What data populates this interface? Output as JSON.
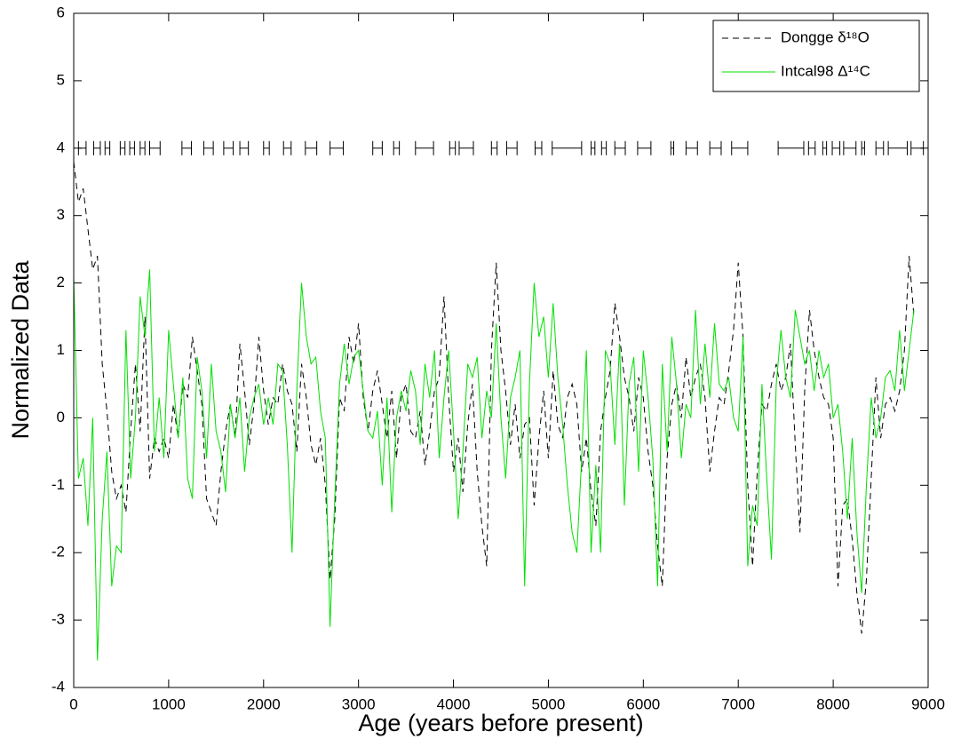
{
  "chart_data": {
    "type": "line",
    "xlabel": "Age (years before present)",
    "ylabel": "Normalized Data",
    "xlim": [
      0,
      9000
    ],
    "xticks": [
      0,
      1000,
      2000,
      3000,
      4000,
      5000,
      6000,
      7000,
      8000,
      9000
    ],
    "ylim": [
      -4,
      6
    ],
    "yticks": [
      -4,
      -3,
      -2,
      -1,
      0,
      1,
      2,
      3,
      4,
      5,
      6
    ],
    "legend": "upper right",
    "x": [
      0,
      50,
      100,
      150,
      200,
      250,
      300,
      350,
      400,
      450,
      500,
      550,
      600,
      650,
      700,
      750,
      800,
      850,
      900,
      950,
      1000,
      1050,
      1100,
      1150,
      1200,
      1250,
      1300,
      1350,
      1400,
      1450,
      1500,
      1550,
      1600,
      1650,
      1700,
      1750,
      1800,
      1850,
      1900,
      1950,
      2000,
      2050,
      2100,
      2150,
      2200,
      2250,
      2300,
      2350,
      2400,
      2450,
      2500,
      2550,
      2600,
      2650,
      2700,
      2750,
      2800,
      2850,
      2900,
      2950,
      3000,
      3050,
      3100,
      3150,
      3200,
      3250,
      3300,
      3350,
      3400,
      3450,
      3500,
      3550,
      3600,
      3650,
      3700,
      3750,
      3800,
      3850,
      3900,
      3950,
      4000,
      4050,
      4100,
      4150,
      4200,
      4250,
      4300,
      4350,
      4400,
      4450,
      4500,
      4550,
      4600,
      4650,
      4700,
      4750,
      4800,
      4850,
      4900,
      4950,
      5000,
      5050,
      5100,
      5150,
      5200,
      5250,
      5300,
      5350,
      5400,
      5450,
      5500,
      5550,
      5600,
      5650,
      5700,
      5750,
      5800,
      5850,
      5900,
      5950,
      6000,
      6050,
      6100,
      6150,
      6200,
      6250,
      6300,
      6350,
      6400,
      6450,
      6500,
      6550,
      6600,
      6650,
      6700,
      6750,
      6800,
      6850,
      6900,
      6950,
      7000,
      7050,
      7100,
      7150,
      7200,
      7250,
      7300,
      7350,
      7400,
      7450,
      7500,
      7550,
      7600,
      7650,
      7700,
      7750,
      7800,
      7850,
      7900,
      7950,
      8000,
      8050,
      8100,
      8150,
      8200,
      8250,
      8300,
      8350,
      8400,
      8450,
      8500,
      8550,
      8600,
      8650,
      8700,
      8750,
      8800,
      8850
    ],
    "series": [
      {
        "name": "Dongge δ¹⁸O",
        "color": "#000000",
        "dash": true,
        "values": [
          3.8,
          3.2,
          3.4,
          2.8,
          2.2,
          2.4,
          0.8,
          0.1,
          -0.8,
          -1.2,
          -1.0,
          -1.4,
          -0.2,
          0.8,
          -0.2,
          1.5,
          -0.9,
          -0.3,
          -0.5,
          -0.3,
          -0.6,
          0.2,
          -0.3,
          0.5,
          0.3,
          1.2,
          0.7,
          0.2,
          -1.2,
          -1.4,
          -1.6,
          -0.8,
          -0.2,
          0.2,
          -0.3,
          1.1,
          0.4,
          -0.4,
          0.2,
          1.2,
          0.4,
          -0.1,
          0.3,
          0.2,
          0.8,
          0.4,
          0.2,
          -0.5,
          0.8,
          0.3,
          -0.4,
          -0.7,
          -0.3,
          -1.0,
          -2.4,
          -1.5,
          0.3,
          0.1,
          1.2,
          0.8,
          1.4,
          0.3,
          -0.2,
          0.4,
          0.7,
          0.2,
          -0.3,
          0.4,
          -0.6,
          0.3,
          0.5,
          -0.2,
          -0.3,
          0.1,
          -0.7,
          -0.2,
          0.4,
          0.6,
          1.8,
          0.3,
          -0.8,
          -0.3,
          -1.1,
          -0.1,
          0.5,
          -0.8,
          -1.6,
          -2.2,
          1.0,
          2.3,
          1.0,
          0.4,
          -0.4,
          0.2,
          -0.6,
          -0.1,
          0.0,
          -1.3,
          -0.3,
          0.4,
          -0.6,
          0.7,
          -0.1,
          -0.3,
          0.3,
          0.5,
          0.2,
          -0.8,
          -0.3,
          -1.1,
          -1.6,
          -0.2,
          0.3,
          0.7,
          1.7,
          1.2,
          0.6,
          0.3,
          -0.2,
          0.6,
          0.3,
          -0.5,
          -1.0,
          -1.9,
          -2.5,
          -0.6,
          0.2,
          0.5,
          0.0,
          0.9,
          0.3,
          0.6,
          0.8,
          0.3,
          -0.8,
          -0.2,
          0.3,
          0.2,
          0.7,
          1.3,
          2.3,
          1.2,
          -1.0,
          -2.2,
          -0.8,
          0.2,
          0.1,
          0.5,
          0.8,
          0.4,
          0.6,
          1.1,
          -0.4,
          -1.7,
          0.4,
          1.6,
          1.0,
          0.6,
          0.3,
          0.2,
          -0.3,
          -2.5,
          -1.3,
          -1.2,
          -1.8,
          -2.6,
          -3.2,
          -2.4,
          -0.9,
          0.6,
          -0.3,
          0.2,
          0.3,
          0.1,
          0.4,
          1.0,
          2.4,
          1.5
        ]
      },
      {
        "name": "Intcal98  Δ¹⁴C",
        "color": "#00e000",
        "dash": false,
        "values": [
          2.1,
          -0.9,
          -0.6,
          -1.6,
          0.0,
          -3.6,
          -1.5,
          -0.5,
          -2.5,
          -1.9,
          -2.0,
          1.3,
          -0.9,
          0.0,
          1.8,
          1.2,
          2.2,
          -0.5,
          0.3,
          -0.6,
          1.3,
          0.5,
          -0.3,
          0.6,
          -0.9,
          -1.2,
          0.9,
          0.4,
          -0.6,
          0.8,
          -0.2,
          -0.5,
          -1.1,
          0.2,
          -0.3,
          0.3,
          -0.8,
          0.0,
          0.3,
          0.5,
          -0.1,
          0.3,
          -0.1,
          0.8,
          0.7,
          -0.4,
          -2.0,
          0.4,
          2.0,
          1.2,
          0.8,
          0.9,
          0.1,
          -0.3,
          -3.1,
          -1.2,
          0.5,
          1.1,
          0.5,
          0.9,
          1.0,
          0.4,
          -0.2,
          -0.3,
          0.1,
          -1.0,
          0.3,
          -1.4,
          0.0,
          0.4,
          0.1,
          0.7,
          0.4,
          -0.4,
          0.8,
          0.3,
          1.0,
          -0.6,
          0.3,
          1.0,
          -0.2,
          -1.5,
          -0.5,
          0.8,
          0.6,
          0.9,
          -0.3,
          0.4,
          0.0,
          1.4,
          0.0,
          -0.9,
          0.3,
          0.6,
          1.0,
          -2.5,
          0.5,
          2.0,
          1.2,
          1.5,
          0.6,
          1.7,
          0.6,
          -0.1,
          -1.0,
          -1.7,
          -2.0,
          -0.6,
          1.0,
          -2.0,
          -0.7,
          -2.0,
          1.0,
          0.8,
          -0.4,
          1.1,
          -1.3,
          0.5,
          0.9,
          -0.8,
          1.0,
          0.3,
          -0.6,
          -2.5,
          0.8,
          -0.5,
          1.2,
          0.5,
          -0.6,
          0.2,
          0.0,
          1.6,
          0.2,
          1.1,
          0.3,
          1.4,
          0.5,
          0.4,
          0.6,
          0.0,
          -0.2,
          1.2,
          -2.2,
          -1.3,
          -1.6,
          0.5,
          -0.9,
          -2.1,
          0.5,
          1.3,
          0.6,
          0.3,
          1.6,
          1.2,
          0.8,
          1.0,
          0.4,
          1.0,
          0.6,
          0.8,
          0.0,
          0.2,
          -0.5,
          -1.5,
          -0.3,
          -1.7,
          -2.6,
          -1.0,
          0.3,
          -0.3,
          0.0,
          0.6,
          0.7,
          0.4,
          1.3,
          0.4,
          1.0,
          1.6
        ]
      }
    ],
    "dating_y": 4,
    "dating_intervals": [
      [
        50,
        130
      ],
      [
        210,
        280
      ],
      [
        330,
        380
      ],
      [
        490,
        540
      ],
      [
        590,
        640
      ],
      [
        700,
        750
      ],
      [
        800,
        910
      ],
      [
        1140,
        1240
      ],
      [
        1370,
        1470
      ],
      [
        1580,
        1680
      ],
      [
        1750,
        1840
      ],
      [
        2000,
        2060
      ],
      [
        2210,
        2290
      ],
      [
        2440,
        2560
      ],
      [
        2700,
        2840
      ],
      [
        3150,
        3250
      ],
      [
        3370,
        3430
      ],
      [
        3600,
        3790
      ],
      [
        3960,
        4020
      ],
      [
        4060,
        4210
      ],
      [
        4400,
        4460
      ],
      [
        4560,
        4670
      ],
      [
        4860,
        4930
      ],
      [
        5040,
        5350
      ],
      [
        5450,
        5490
      ],
      [
        5560,
        5610
      ],
      [
        5700,
        5810
      ],
      [
        5940,
        6080
      ],
      [
        6290,
        6320
      ],
      [
        6450,
        6570
      ],
      [
        6700,
        6820
      ],
      [
        6930,
        7100
      ],
      [
        7420,
        7690
      ],
      [
        7740,
        7810
      ],
      [
        7890,
        7930
      ],
      [
        7990,
        8070
      ],
      [
        8110,
        8240
      ],
      [
        8300,
        8330
      ],
      [
        8450,
        8530
      ],
      [
        8580,
        8780
      ],
      [
        8820,
        8950
      ]
    ]
  }
}
